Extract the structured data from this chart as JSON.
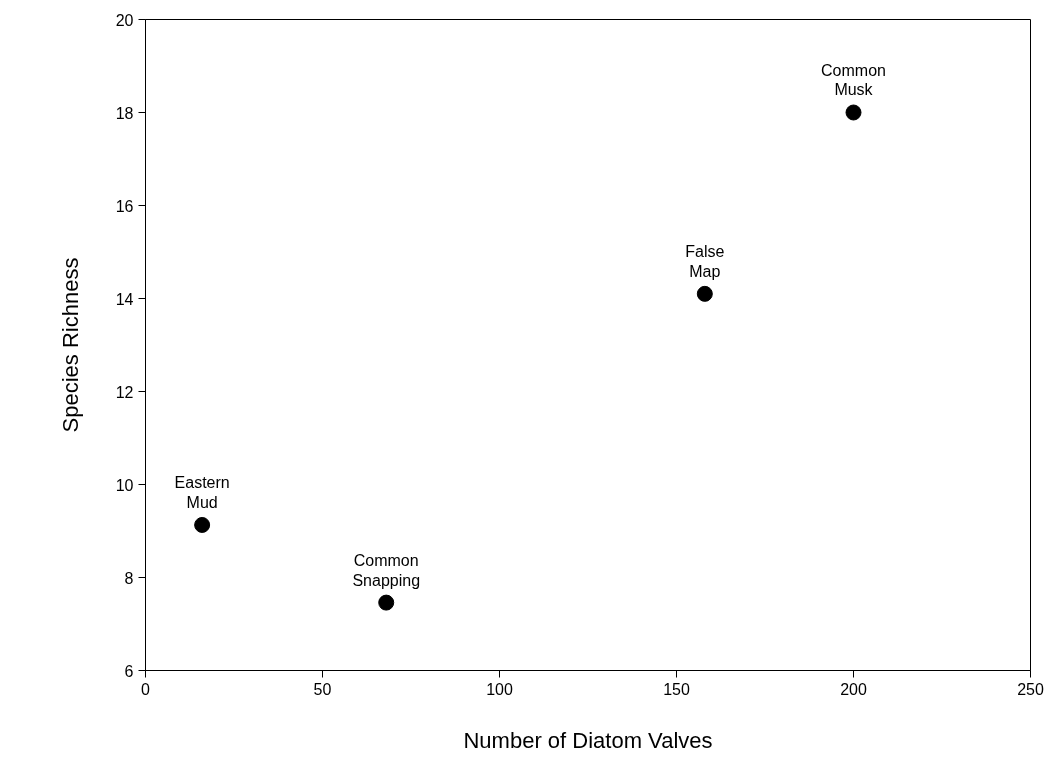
{
  "chart_data": {
    "type": "scatter",
    "xlabel": "Number of Diatom Valves",
    "ylabel": "Species Richness",
    "x": [
      200,
      158,
      16,
      68
    ],
    "series": [
      {
        "color": "#000000",
        "values": [
          18.0,
          14.1,
          9.13,
          7.46
        ]
      }
    ],
    "marker": "circle",
    "grid": false,
    "xlim": [
      0,
      250
    ],
    "xticks": [
      0,
      50,
      100,
      150,
      200,
      250
    ],
    "ylim": [
      6,
      20
    ],
    "yticks": [
      6,
      8,
      10,
      12,
      14,
      16,
      18,
      20
    ],
    "annotations": [
      {
        "text": "Common\nMusk",
        "x": 200,
        "y": 18.0
      },
      {
        "text": "False\nMap",
        "x": 158,
        "y": 14.1
      },
      {
        "text": "Eastern\nMud",
        "x": 16,
        "y": 9.13
      },
      {
        "text": "Common\nSnapping",
        "x": 68,
        "y": 7.46
      }
    ]
  }
}
